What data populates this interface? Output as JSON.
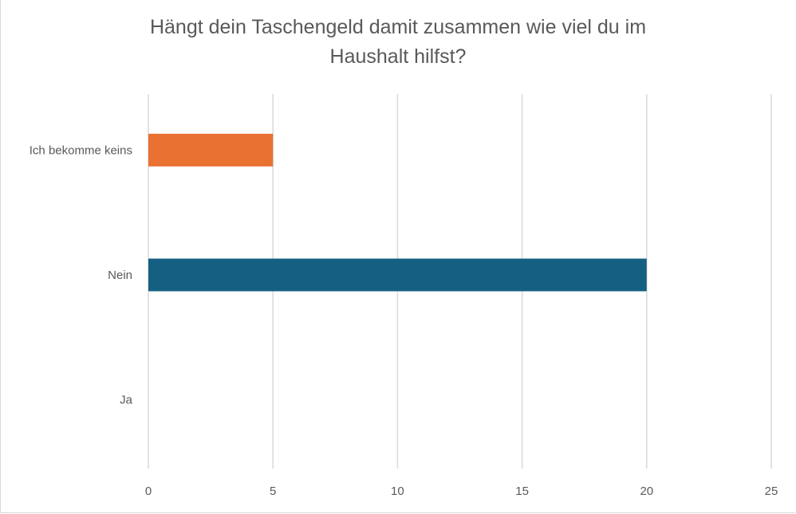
{
  "chart_data": {
    "type": "bar",
    "orientation": "horizontal",
    "title_lines": [
      "Hängt dein Taschengeld damit zusammen wie viel du im",
      "Haushalt hilfst?"
    ],
    "categories": [
      "Ich bekomme keins",
      "Nein",
      "Ja"
    ],
    "values": [
      5,
      20,
      0
    ],
    "colors": [
      "#E97132",
      "#156082",
      "#156082"
    ],
    "xlim": [
      0,
      25
    ],
    "xticks": [
      0,
      5,
      10,
      15,
      20,
      25
    ],
    "xlabel": "",
    "ylabel": "",
    "grid": true,
    "legend": "none"
  }
}
